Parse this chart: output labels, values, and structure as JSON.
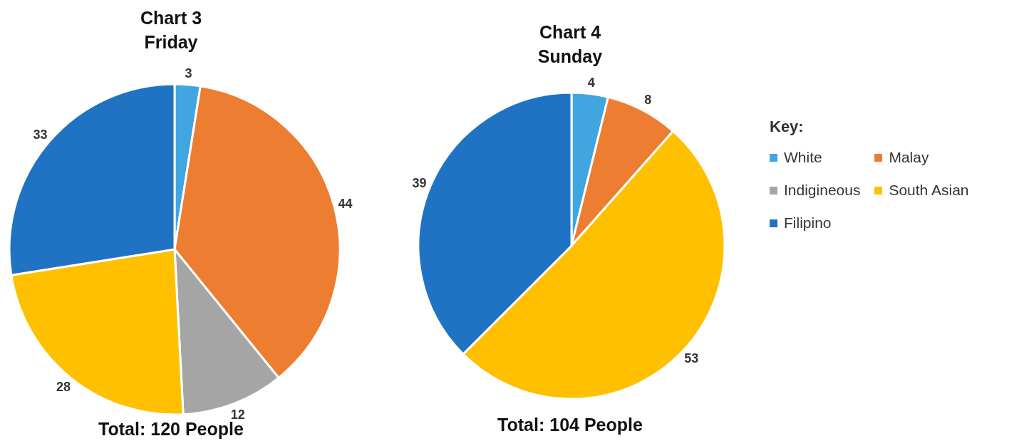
{
  "chart_data": [
    {
      "type": "pie",
      "title": "Chart 3",
      "subtitle": "Friday",
      "annotations": [
        "Total: 120 People"
      ],
      "categories": [
        null,
        null,
        null,
        null,
        null
      ],
      "values": [
        3,
        44,
        12,
        28,
        33
      ],
      "colors": [
        "#41a5e0",
        "#ed7d31",
        "#a5a5a5",
        "#ffc000",
        "#1f73c2"
      ],
      "data_labels": true,
      "legend": false
    },
    {
      "type": "pie",
      "title": "Chart 4",
      "subtitle": "Sunday",
      "annotations": [
        "Total: 104 People"
      ],
      "categories": [
        "White",
        "Malay",
        "Indigineous",
        "South Asian",
        "Filipino"
      ],
      "values": [
        4,
        8,
        0,
        53,
        39
      ],
      "value_labels": [
        "4",
        "8",
        null,
        "53",
        "39"
      ],
      "colors": [
        "#41a5e0",
        "#ed7d31",
        "#a5a5a5",
        "#ffc000",
        "#1f73c2"
      ],
      "legend": "right",
      "legend_title": "Key:"
    }
  ]
}
